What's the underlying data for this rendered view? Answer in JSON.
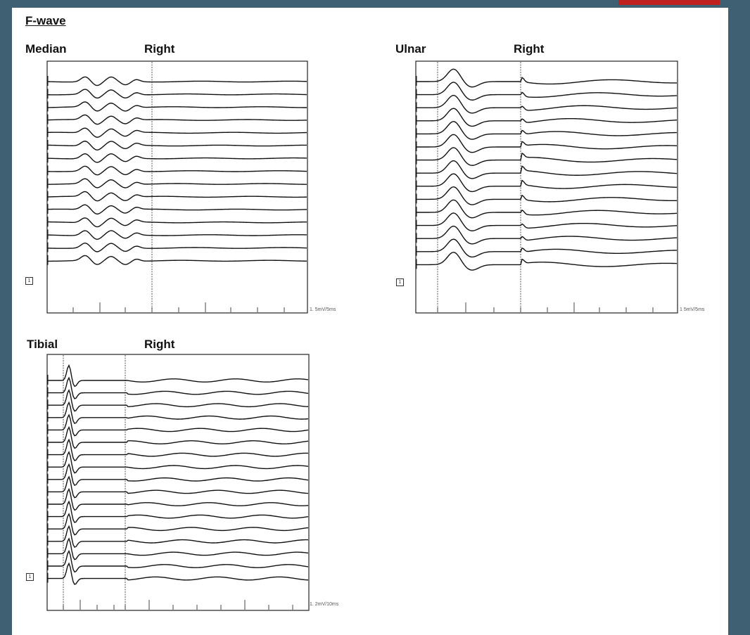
{
  "page": {
    "heading": "F-wave",
    "colors": {
      "background": "#3e6072",
      "sheet": "#ffffff",
      "accent_tab": "#c0201e",
      "trace": "#111111"
    }
  },
  "panels": [
    {
      "id": "median",
      "nerve": "Median",
      "side": "Right",
      "scale": "1. 5mV/5ms",
      "marker": "1",
      "trace_count": 15,
      "waveform": "triphasic"
    },
    {
      "id": "ulnar",
      "nerve": "Ulnar",
      "side": "Right",
      "scale": "1 5mV/5ms",
      "marker": "1",
      "trace_count": 15,
      "waveform": "large-m"
    },
    {
      "id": "tibial",
      "nerve": "Tibial",
      "side": "Right",
      "scale": "1. 2mV/10ms",
      "marker": "1",
      "trace_count": 17,
      "waveform": "sharp-spike"
    }
  ],
  "chart_data": [
    {
      "type": "line",
      "title": "Median",
      "subtitle": "Right",
      "scale": "1. 5mV/5ms",
      "traces": 15,
      "grid": false
    },
    {
      "type": "line",
      "title": "Ulnar",
      "subtitle": "Right",
      "scale": "1 5mV/5ms",
      "traces": 15,
      "grid": false
    },
    {
      "type": "line",
      "title": "Tibial",
      "subtitle": "Right",
      "scale": "1. 2mV/10ms",
      "traces": 17,
      "grid": false
    }
  ]
}
